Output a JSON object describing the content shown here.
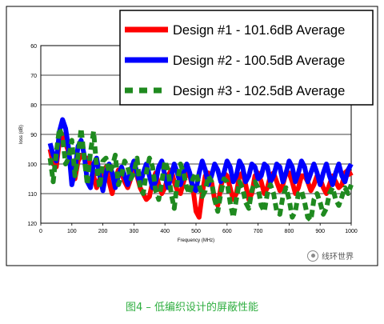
{
  "caption": "图4 – 低编织设计的屏蔽性能",
  "watermark": {
    "text": "线环世界",
    "icon": "wechat-icon"
  },
  "chart_data": {
    "type": "line",
    "xlabel": "Frequency (MHz)",
    "ylabel": "loss (dB)",
    "xlim": [
      0,
      1000
    ],
    "ylim": [
      120,
      60
    ],
    "y_inverted": true,
    "xticks": [
      0,
      100,
      200,
      300,
      400,
      500,
      600,
      700,
      800,
      900,
      1000
    ],
    "yticks": [
      60,
      70,
      80,
      90,
      100,
      110,
      120
    ],
    "grid": "horizontal",
    "legend_position": "top-right",
    "series": [
      {
        "name": "Design #1 - 101.6dB Average",
        "color": "#ff0000",
        "dash": "solid",
        "x": [
          30,
          40,
          50,
          60,
          70,
          80,
          90,
          100,
          110,
          120,
          130,
          140,
          150,
          160,
          170,
          180,
          190,
          200,
          210,
          220,
          230,
          240,
          250,
          260,
          270,
          280,
          290,
          300,
          310,
          320,
          330,
          340,
          350,
          360,
          370,
          380,
          390,
          400,
          410,
          420,
          430,
          440,
          450,
          460,
          470,
          480,
          490,
          500,
          510,
          520,
          530,
          540,
          550,
          560,
          570,
          580,
          590,
          600,
          610,
          620,
          630,
          640,
          650,
          660,
          670,
          680,
          690,
          700,
          710,
          720,
          730,
          740,
          750,
          760,
          770,
          780,
          790,
          800,
          810,
          820,
          830,
          840,
          850,
          860,
          870,
          880,
          890,
          900,
          910,
          920,
          930,
          940,
          950,
          960,
          970,
          980,
          990,
          1000
        ],
        "y": [
          95,
          100,
          101,
          92,
          90,
          93,
          96,
          103,
          105,
          99,
          97,
          98,
          98,
          100,
          104,
          108,
          105,
          103,
          101,
          106,
          110,
          105,
          102,
          103,
          106,
          108,
          105,
          102,
          104,
          108,
          110,
          112,
          111,
          106,
          103,
          107,
          110,
          108,
          104,
          102,
          106,
          109,
          110,
          106,
          103,
          104,
          108,
          116,
          118,
          110,
          104,
          103,
          106,
          112,
          114,
          108,
          103,
          104,
          108,
          112,
          110,
          104,
          103,
          107,
          112,
          110,
          104,
          103,
          106,
          110,
          108,
          104,
          103,
          106,
          109,
          107,
          103,
          103,
          106,
          110,
          108,
          104,
          104,
          106,
          109,
          107,
          104,
          105,
          108,
          110,
          107,
          104,
          106,
          108,
          107,
          103,
          102,
          104
        ]
      },
      {
        "name": "Design #2 - 100.5dB Average",
        "color": "#0000ff",
        "dash": "solid",
        "x": [
          30,
          40,
          50,
          60,
          70,
          80,
          90,
          100,
          110,
          120,
          130,
          140,
          150,
          160,
          170,
          180,
          190,
          200,
          210,
          220,
          230,
          240,
          250,
          260,
          270,
          280,
          290,
          300,
          310,
          320,
          330,
          340,
          350,
          360,
          370,
          380,
          390,
          400,
          410,
          420,
          430,
          440,
          450,
          460,
          470,
          480,
          490,
          500,
          510,
          520,
          530,
          540,
          550,
          560,
          570,
          580,
          590,
          600,
          610,
          620,
          630,
          640,
          650,
          660,
          670,
          680,
          690,
          700,
          710,
          720,
          730,
          740,
          750,
          760,
          770,
          780,
          790,
          800,
          810,
          820,
          830,
          840,
          850,
          860,
          870,
          880,
          890,
          900,
          910,
          920,
          930,
          940,
          950,
          960,
          970,
          980,
          990,
          1000
        ],
        "y": [
          93,
          97,
          99,
          89,
          85,
          88,
          95,
          107,
          102,
          94,
          92,
          97,
          106,
          108,
          100,
          98,
          104,
          109,
          103,
          100,
          103,
          108,
          104,
          101,
          104,
          107,
          102,
          99,
          103,
          107,
          103,
          100,
          104,
          108,
          106,
          101,
          99,
          104,
          108,
          104,
          100,
          103,
          107,
          103,
          100,
          103,
          108,
          109,
          103,
          99,
          102,
          107,
          104,
          100,
          102,
          106,
          103,
          99,
          101,
          106,
          104,
          99,
          101,
          106,
          104,
          100,
          101,
          105,
          104,
          100,
          101,
          106,
          104,
          100,
          101,
          106,
          103,
          99,
          101,
          106,
          103,
          99,
          101,
          106,
          103,
          100,
          103,
          107,
          103,
          100,
          104,
          107,
          103,
          100,
          104,
          106,
          102,
          100
        ]
      },
      {
        "name": "Design #3 - 102.5dB Average",
        "color": "#1f8a1f",
        "dash": "dashed",
        "x": [
          30,
          40,
          50,
          60,
          70,
          80,
          90,
          100,
          110,
          120,
          130,
          140,
          150,
          160,
          170,
          180,
          190,
          200,
          210,
          220,
          230,
          240,
          250,
          260,
          270,
          280,
          290,
          300,
          310,
          320,
          330,
          340,
          350,
          360,
          370,
          380,
          390,
          400,
          410,
          420,
          430,
          440,
          450,
          460,
          470,
          480,
          490,
          500,
          510,
          520,
          530,
          540,
          550,
          560,
          570,
          580,
          590,
          600,
          610,
          620,
          630,
          640,
          650,
          660,
          670,
          680,
          690,
          700,
          710,
          720,
          730,
          740,
          750,
          760,
          770,
          780,
          790,
          800,
          810,
          820,
          830,
          840,
          850,
          860,
          870,
          880,
          890,
          900,
          910,
          920,
          930,
          940,
          950,
          960,
          970,
          980,
          990,
          1000
        ],
        "y": [
          98,
          106,
          96,
          88,
          91,
          100,
          98,
          92,
          104,
          97,
          88,
          98,
          107,
          96,
          89,
          101,
          108,
          99,
          98,
          103,
          101,
          97,
          107,
          104,
          99,
          101,
          105,
          103,
          98,
          108,
          110,
          103,
          98,
          101,
          109,
          112,
          106,
          99,
          102,
          110,
          115,
          106,
          100,
          103,
          108,
          110,
          105,
          103,
          107,
          111,
          109,
          104,
          106,
          112,
          116,
          110,
          105,
          106,
          113,
          118,
          112,
          106,
          108,
          113,
          115,
          109,
          106,
          108,
          114,
          116,
          110,
          107,
          110,
          116,
          117,
          111,
          108,
          112,
          118,
          116,
          110,
          109,
          113,
          118,
          119,
          112,
          110,
          113,
          117,
          115,
          110,
          108,
          112,
          114,
          111,
          108,
          110,
          107
        ]
      }
    ]
  }
}
